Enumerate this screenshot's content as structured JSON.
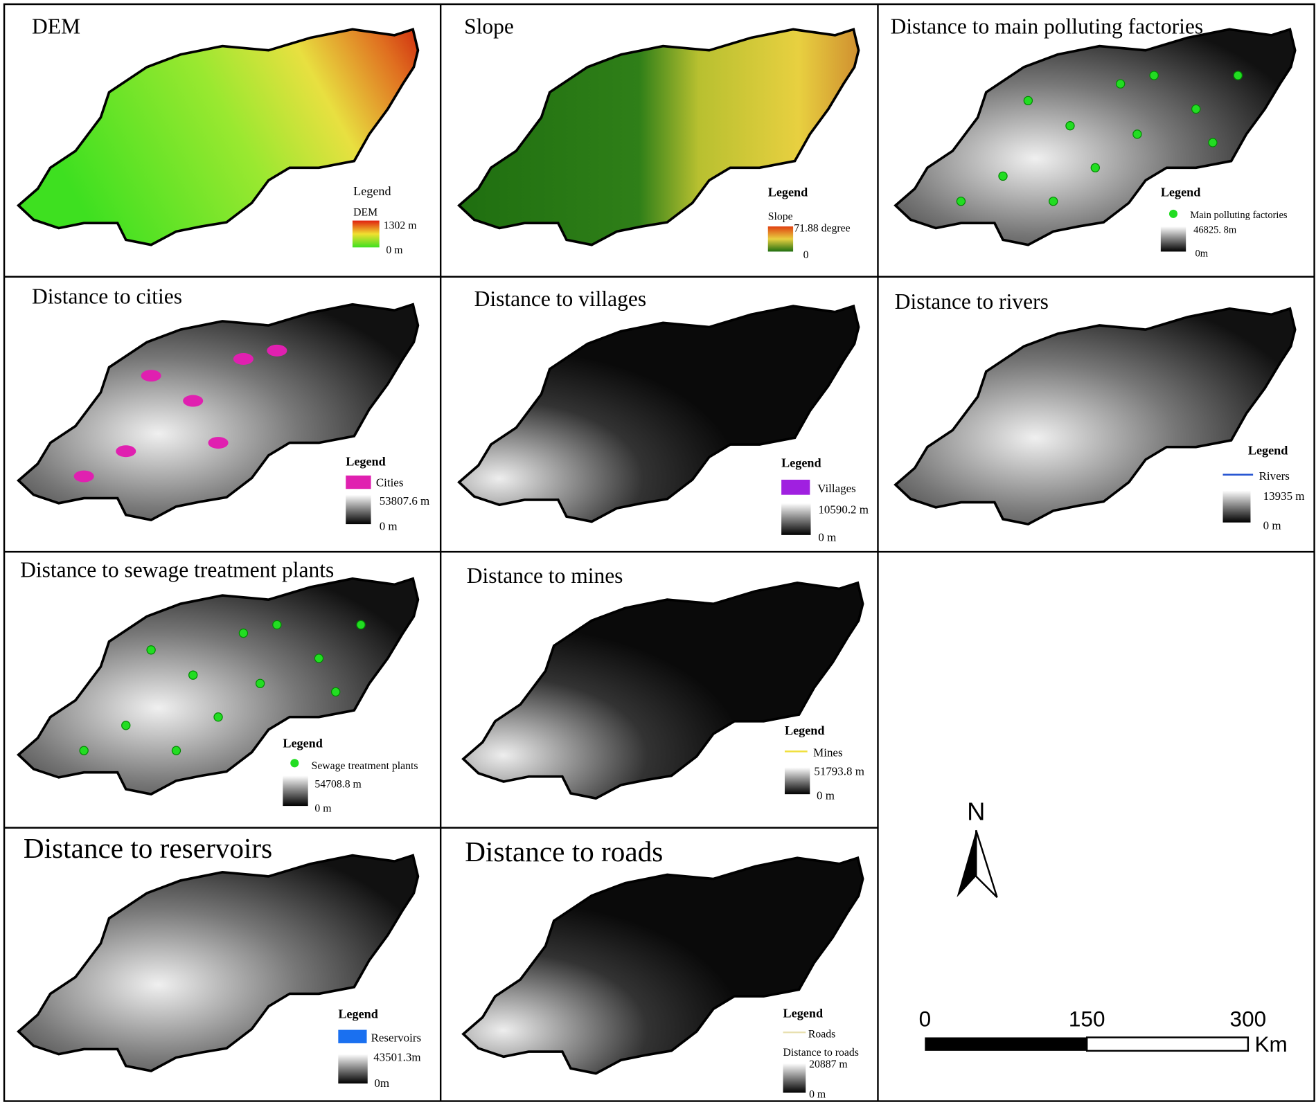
{
  "panels": [
    {
      "title": "DEM",
      "legend": {
        "heading": "Legend",
        "layer": "DEM",
        "max": "1302 m",
        "min": "0 m"
      }
    },
    {
      "title": "Slope",
      "legend": {
        "heading": "Legend",
        "layer": "Slope",
        "max": "71.88 degree",
        "min": "0"
      }
    },
    {
      "title": "Distance to main polluting factories",
      "legend": {
        "heading": "Legend",
        "layer": "Main polluting factories",
        "max": "46825. 8m",
        "min": "0m"
      }
    },
    {
      "title": "Distance to cities",
      "legend": {
        "heading": "Legend",
        "layer": "Cities",
        "max": "53807.6 m",
        "min": "0 m"
      }
    },
    {
      "title": "Distance to villages",
      "legend": {
        "heading": "Legend",
        "layer": "Villages",
        "max": "10590.2 m",
        "min": "0 m"
      }
    },
    {
      "title": "Distance to rivers",
      "legend": {
        "heading": "Legend",
        "layer": "Rivers",
        "max": "13935 m",
        "min": "0 m"
      }
    },
    {
      "title": "Distance to sewage treatment plants",
      "legend": {
        "heading": "Legend",
        "layer": "Sewage treatment plants",
        "max": "54708.8 m",
        "min": "0 m"
      }
    },
    {
      "title": "Distance to mines",
      "legend": {
        "heading": "Legend",
        "layer": "Mines",
        "max": "51793.8 m",
        "min": "0 m"
      }
    },
    {
      "title": "Distance to reservoirs",
      "legend": {
        "heading": "Legend",
        "layer": "Reservoirs",
        "max": "43501.3m",
        "min": "0m"
      }
    },
    {
      "title": "Distance to roads",
      "legend": {
        "heading": "Legend",
        "layer": "Roads",
        "sublayer": "Distance to roads",
        "max": "20887 m",
        "min": "0 m"
      }
    }
  ],
  "north_arrow": "N",
  "scale_bar": {
    "labels": [
      "0",
      "150",
      "300"
    ],
    "unit": "Km"
  }
}
